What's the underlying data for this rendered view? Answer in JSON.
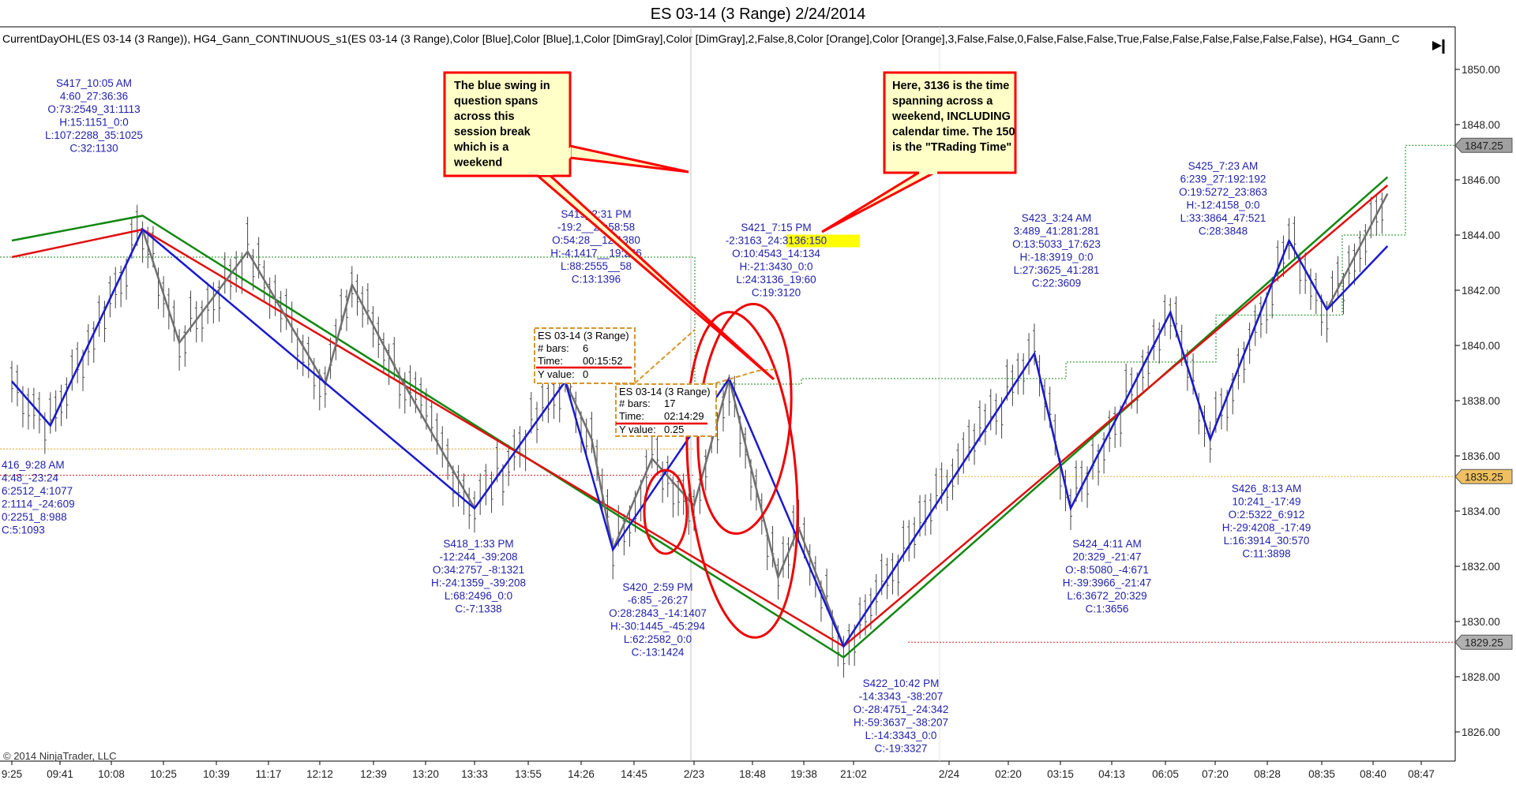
{
  "title": "ES 03-14 (3 Range)  2/24/2014",
  "indicator_text": "CurrentDayOHL(ES 03-14  (3  Range)),  HG4_Gann_CONTINUOUS_s1(ES  03-14  (3  Range),Color  [Blue],Color  [Blue],1,Color  [DimGray],Color  [DimGray],2,False,8,Color  [Orange],Color  [Orange],3,False,False,0,False,False,False,True,False,False,False,False,False,False),  HG4_Gann_C",
  "copyright": "© 2014 NinjaTrader, LLC",
  "colors": {
    "swing_text": "#2222aa",
    "blue": "#1a1ad0",
    "gray": "#707070",
    "red": "#e01010",
    "green": "#118811",
    "orange": "#e8a020",
    "callout_fill": "#ffffc8",
    "callout_border": "#ff0000",
    "highlight": "#ffff00"
  },
  "callouts": [
    {
      "lines": [
        "The blue swing in",
        "question spans",
        "across this",
        "session break",
        "which is a",
        "weekend"
      ]
    },
    {
      "lines": [
        "Here, 3136 is the time",
        "spanning across a",
        "weekend, INCLUDING",
        "calendar time. The 150",
        "is the \"TRading Time\""
      ]
    }
  ],
  "measure_boxes": [
    {
      "title": "ES 03-14 (3 Range)",
      "bars_label": "# bars:",
      "bars": "6",
      "time_label": "Time:",
      "time": "00:15:52",
      "y_label": "Y value:",
      "y": "0"
    },
    {
      "title": "ES 03-14 (3 Range)",
      "bars_label": "# bars:",
      "bars": "17",
      "time_label": "Time:",
      "time": "02:14:29",
      "y_label": "Y value:",
      "y": "0.25"
    }
  ],
  "chart_data": {
    "type": "line",
    "title": "ES 03-14 (3 Range)  2/24/2014",
    "ylim": [
      1825,
      1851
    ],
    "yticks": [
      "1850.00",
      "1848.00",
      "1846.00",
      "1844.00",
      "1842.00",
      "1840.00",
      "1838.00",
      "1836.00",
      "1834.00",
      "1832.00",
      "1830.00",
      "1828.00",
      "1826.00"
    ],
    "xticks": [
      "9:25",
      "09:41",
      "10:08",
      "10:25",
      "10:39",
      "11:17",
      "12:12",
      "12:39",
      "13:20",
      "13:33",
      "13:55",
      "14:26",
      "14:45",
      "2/23",
      "18:48",
      "19:38",
      "21:02",
      "2/24",
      "02:20",
      "03:15",
      "04:13",
      "06:05",
      "07:20",
      "08:28",
      "08:35",
      "08:40",
      "08:47"
    ],
    "price_tags": [
      {
        "label": "1847.25",
        "value": 1847.25,
        "color": "#a0a0a0"
      },
      {
        "label": "1835.25",
        "value": 1835.25,
        "color": "#f0c060"
      },
      {
        "label": "1829.25",
        "value": 1829.25,
        "color": "#b0b0b0"
      }
    ],
    "series": [
      {
        "name": "Blue swing",
        "color": "#1a1ad0",
        "x": [
          0,
          0.8,
          2.6,
          9.0,
          10.7,
          11.6,
          13.6,
          15.8,
          18.5,
          19.2,
          21.1,
          21.9,
          23.4,
          24.1,
          25.3
        ],
        "y": [
          1838.7,
          1837.1,
          1844.2,
          1834.1,
          1838.7,
          1832.6,
          1838.8,
          1829.1,
          1839.7,
          1834.1,
          1841.2,
          1836.6,
          1843.8,
          1841.3,
          1843.6
        ]
      },
      {
        "name": "Gray swing",
        "color": "#707070",
        "x": [
          0,
          0.8,
          2.6,
          3.3,
          4.6,
          6.1,
          6.6,
          7.5,
          9.0,
          10.7,
          11.2,
          11.6,
          12.3,
          13.0,
          13.6,
          14.5,
          14.9,
          15.8,
          18.5,
          19.2,
          21.1,
          21.9,
          23.4,
          24.1,
          25.3
        ],
        "y": [
          1838.7,
          1837.1,
          1844.2,
          1840.1,
          1843.4,
          1838.6,
          1842.2,
          1838.9,
          1834.1,
          1838.7,
          1836.6,
          1832.6,
          1835.9,
          1834.2,
          1838.8,
          1831.6,
          1833.4,
          1829.1,
          1839.7,
          1834.1,
          1841.2,
          1836.6,
          1843.8,
          1841.3,
          1845.5
        ]
      },
      {
        "name": "Red trend",
        "color": "#e01010",
        "x": [
          0,
          2.6,
          15.8,
          25.3
        ],
        "y": [
          1843.2,
          1844.2,
          1829.1,
          1845.8
        ]
      },
      {
        "name": "Green trend",
        "color": "#118811",
        "x": [
          0,
          2.6,
          15.8,
          25.3
        ],
        "y": [
          1843.8,
          1844.7,
          1828.7,
          1846.1
        ]
      }
    ],
    "hlines": [
      {
        "name": "orange-level-left",
        "value": 1836.25,
        "color": "#e8a020"
      },
      {
        "name": "session-open-right",
        "value": 1835.25,
        "color": "#e8b030"
      },
      {
        "name": "red-level-left",
        "value": 1835.3,
        "color": "#e02020"
      },
      {
        "name": "red-level-right",
        "value": 1829.25,
        "color": "#e02020"
      },
      {
        "name": "green-step-left",
        "value": 1843.2,
        "color": "#118811"
      }
    ],
    "swing_labels": [
      {
        "id": "S417",
        "lines": [
          "S417_10:05 AM",
          "4:60_27:36:36",
          "O:73:2549_31:1113",
          "H:15:1151_0:0",
          "L:107:2288_35:1025",
          "C:32:1130"
        ]
      },
      {
        "id": "S416",
        "lines": [
          "416_9:28 AM",
          "4:48_-23:24",
          "6:2512_4:1077",
          "2:1114_-24:609",
          "0:2251_8:988",
          "C:5:1093"
        ]
      },
      {
        "id": "S419",
        "lines": [
          "S419_2:31 PM",
          "-19:2__20:58:58",
          "O:54:28__12:1380",
          "H:-4:1417__19:266",
          "L:88:2555__58",
          "C:13:1396"
        ]
      },
      {
        "id": "S418",
        "lines": [
          "S418_1:33 PM",
          "-12:244_-39:208",
          "O:34:2757_-8:1321",
          "H:-24:1359_-39:208",
          "L:68:2496_0:0",
          "C:-7:1338"
        ]
      },
      {
        "id": "S420",
        "lines": [
          "S420_2:59 PM",
          "-6:85_-26:27",
          "O:28:2843_-14:1407",
          "H:-30:1445_-45:294",
          "L:62:2582_0:0",
          "C:-13:1424"
        ]
      },
      {
        "id": "S421",
        "lines": [
          "S421_7:15 PM",
          "-2:3163_24:3136:150",
          "O:10:4543_14:134",
          "H:-21:3430_0:0",
          "L:24:3136_19:60",
          "C:19:3120"
        ]
      },
      {
        "id": "S422",
        "lines": [
          "S422_10:42 PM",
          "-14:3343_-38:207",
          "O:-28:4751_-24:342",
          "H:-59:3637_-38:207",
          "L:-14:3343_0:0",
          "C:-19:3327"
        ]
      },
      {
        "id": "S423",
        "lines": [
          "S423_3:24 AM",
          "3:489_41:281:281",
          "O:13:5033_17:623",
          "H:-18:3919_0:0",
          "L:27:3625_41:281",
          "C:22:3609"
        ]
      },
      {
        "id": "S425",
        "lines": [
          "S425_7:23 AM",
          "6:239_27:192:192",
          "O:19:5272_23:863",
          "H:-12:4158_0:0",
          "L:33:3864_47:521",
          "C:28:3848"
        ]
      },
      {
        "id": "S424",
        "lines": [
          "S424_4:11 AM",
          "20:329_-21:47",
          "O:-8:5080_-4:671",
          "H:-39:3966_-21:47",
          "L:6:3672_20:329",
          "C:1:3656"
        ]
      },
      {
        "id": "S426",
        "lines": [
          "S426_8:13 AM",
          "10:241_-17:49",
          "O:2:5322_6:912",
          "H:-29:4208_-17:49",
          "L:16:3914_30:570",
          "C:11:3898"
        ]
      }
    ]
  }
}
